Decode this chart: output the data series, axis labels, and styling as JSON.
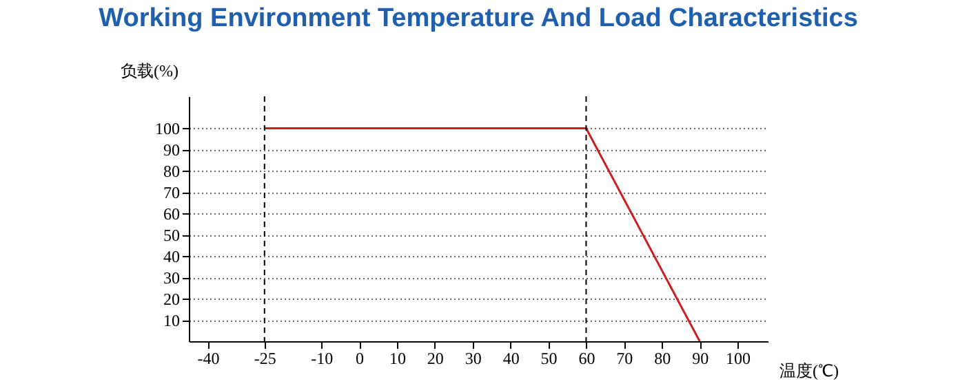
{
  "chart_data": {
    "type": "line",
    "title": "Working Environment Temperature And Load Characteristics",
    "xlabel": "温度(℃)",
    "ylabel": "负载(%)",
    "x": [
      -25,
      60,
      90
    ],
    "series": [
      {
        "color": "#cc1f1f",
        "values": [
          100,
          100,
          0
        ]
      }
    ],
    "xlim": [
      -45,
      108
    ],
    "xticks": [
      -40,
      -25,
      -10,
      0,
      10,
      20,
      30,
      40,
      50,
      60,
      70,
      80,
      90,
      100
    ],
    "ylim": [
      0,
      115
    ],
    "yticks": [
      10,
      20,
      30,
      40,
      50,
      60,
      70,
      80,
      90,
      100
    ],
    "grid": "y",
    "ref_lines": [
      {
        "axis": "x",
        "value": -25,
        "color": "#000000",
        "line_style": "dashed"
      },
      {
        "axis": "x",
        "value": 60,
        "color": "#000000",
        "line_style": "dashed"
      }
    ]
  }
}
